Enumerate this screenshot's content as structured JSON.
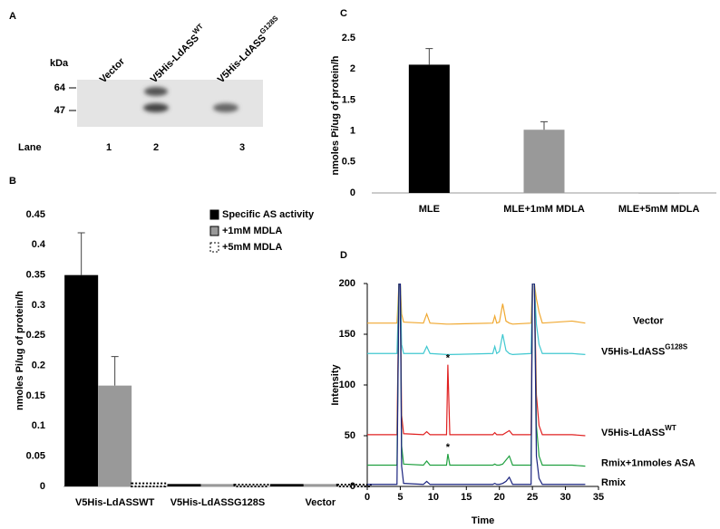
{
  "blot": {
    "panel_label": "A",
    "unit_label": "kDa",
    "markers": [
      64,
      47
    ],
    "lanes": [
      {
        "name": "Vector"
      },
      {
        "name": "V5His-LdASS",
        "sup": "WT"
      },
      {
        "name": "V5His-LdASS",
        "sup": "G128S"
      }
    ],
    "lane_title": "Lane",
    "lane_numbers": [
      1,
      2,
      3
    ]
  },
  "chart_data": [
    {
      "type": "bar",
      "panel_label": "B",
      "y_label": "nmoles Pi/ug of protein/h",
      "categories": [
        "V5His-LdASSWT",
        "V5His-LdASSG128S",
        "Vector"
      ],
      "series": [
        {
          "name": "Specific AS activity",
          "color": "#000000",
          "values": [
            0.35,
            0.004,
            0.004
          ],
          "errors": [
            0.07,
            null,
            null
          ]
        },
        {
          "name": "+1mM MDLA",
          "color": "#999999",
          "values": [
            0.167,
            0.004,
            0.004
          ],
          "errors": [
            0.048,
            null,
            null
          ]
        },
        {
          "name": "+5mM MDLA",
          "color": "#ffffff",
          "pattern": "dotted",
          "values": [
            0.005,
            0.003,
            0.003
          ],
          "errors": [
            null,
            null,
            null
          ]
        }
      ],
      "ylim": [
        0,
        0.45
      ],
      "yticks": [
        0,
        0.05,
        0.1,
        0.15,
        0.2,
        0.25,
        0.3,
        0.35,
        0.4,
        0.45
      ]
    },
    {
      "type": "bar",
      "panel_label": "C",
      "y_label": "nmoles Pi/ug of protein/h",
      "categories": [
        "MLE",
        "MLE+1mM MDLA",
        "MLE+5mM MDLA"
      ],
      "values": [
        2.07,
        1.02,
        0.005
      ],
      "errors": [
        0.26,
        0.13,
        null
      ],
      "colors": [
        "#000000",
        "#999999",
        "#999999"
      ],
      "ylim": [
        0,
        2.5
      ],
      "yticks": [
        0,
        0.5,
        1,
        1.5,
        2,
        2.5
      ]
    },
    {
      "type": "line",
      "panel_label": "D",
      "x_label": "Time",
      "y_label": "Intensity",
      "x": [
        0,
        4.5,
        4.8,
        5,
        5.2,
        5.5,
        8.5,
        9,
        9.5,
        12,
        12.2,
        12.5,
        19,
        19.3,
        19.6,
        20,
        20.5,
        21,
        21.5,
        22,
        24.8,
        25,
        25.3,
        25.6,
        26,
        26.5,
        31,
        33
      ],
      "series": [
        {
          "name": "Vector",
          "color": "#f0a830",
          "values": [
            161,
            161,
            200,
            200,
            170,
            162,
            161,
            170,
            161,
            160,
            160,
            160,
            161,
            168,
            161,
            162,
            180,
            163,
            161,
            160,
            161,
            200,
            200,
            185,
            172,
            161,
            163,
            161
          ]
        },
        {
          "name": "V5His-LdASS",
          "sup": "G128S",
          "color": "#40c8d0",
          "values": [
            131,
            131,
            200,
            200,
            140,
            131,
            131,
            138,
            131,
            130,
            130,
            130,
            131,
            138,
            131,
            133,
            150,
            134,
            131,
            130,
            131,
            200,
            200,
            160,
            140,
            131,
            131,
            130
          ]
        },
        {
          "name": "V5His-LdASS",
          "sup": "WT",
          "color": "#e02020",
          "values": [
            51,
            51,
            200,
            200,
            70,
            52,
            51,
            54,
            51,
            51,
            120,
            51,
            51,
            53,
            51,
            51,
            51,
            53,
            55,
            51,
            51,
            200,
            200,
            90,
            60,
            51,
            51,
            50
          ]
        },
        {
          "name": "Rmix+1nmoles ASA",
          "color": "#20a040",
          "values": [
            21,
            21,
            200,
            200,
            40,
            22,
            21,
            25,
            21,
            21,
            32,
            21,
            21,
            22,
            21,
            21,
            22,
            26,
            30,
            21,
            21,
            200,
            200,
            60,
            30,
            21,
            21,
            20
          ]
        },
        {
          "name": "Rmix",
          "color": "#1a237e",
          "values": [
            2,
            2,
            200,
            200,
            20,
            3,
            2,
            5,
            2,
            2,
            2,
            2,
            2,
            3,
            2,
            2,
            3,
            5,
            9,
            2,
            2,
            200,
            200,
            30,
            8,
            2,
            2,
            2
          ]
        }
      ],
      "annotations": [
        "*",
        "*"
      ],
      "xlim": [
        0,
        35
      ],
      "xticks": [
        0,
        5,
        10,
        15,
        20,
        25,
        30,
        35
      ],
      "ylim": [
        0,
        200
      ],
      "yticks": [
        0,
        50,
        100,
        150,
        200
      ]
    }
  ]
}
